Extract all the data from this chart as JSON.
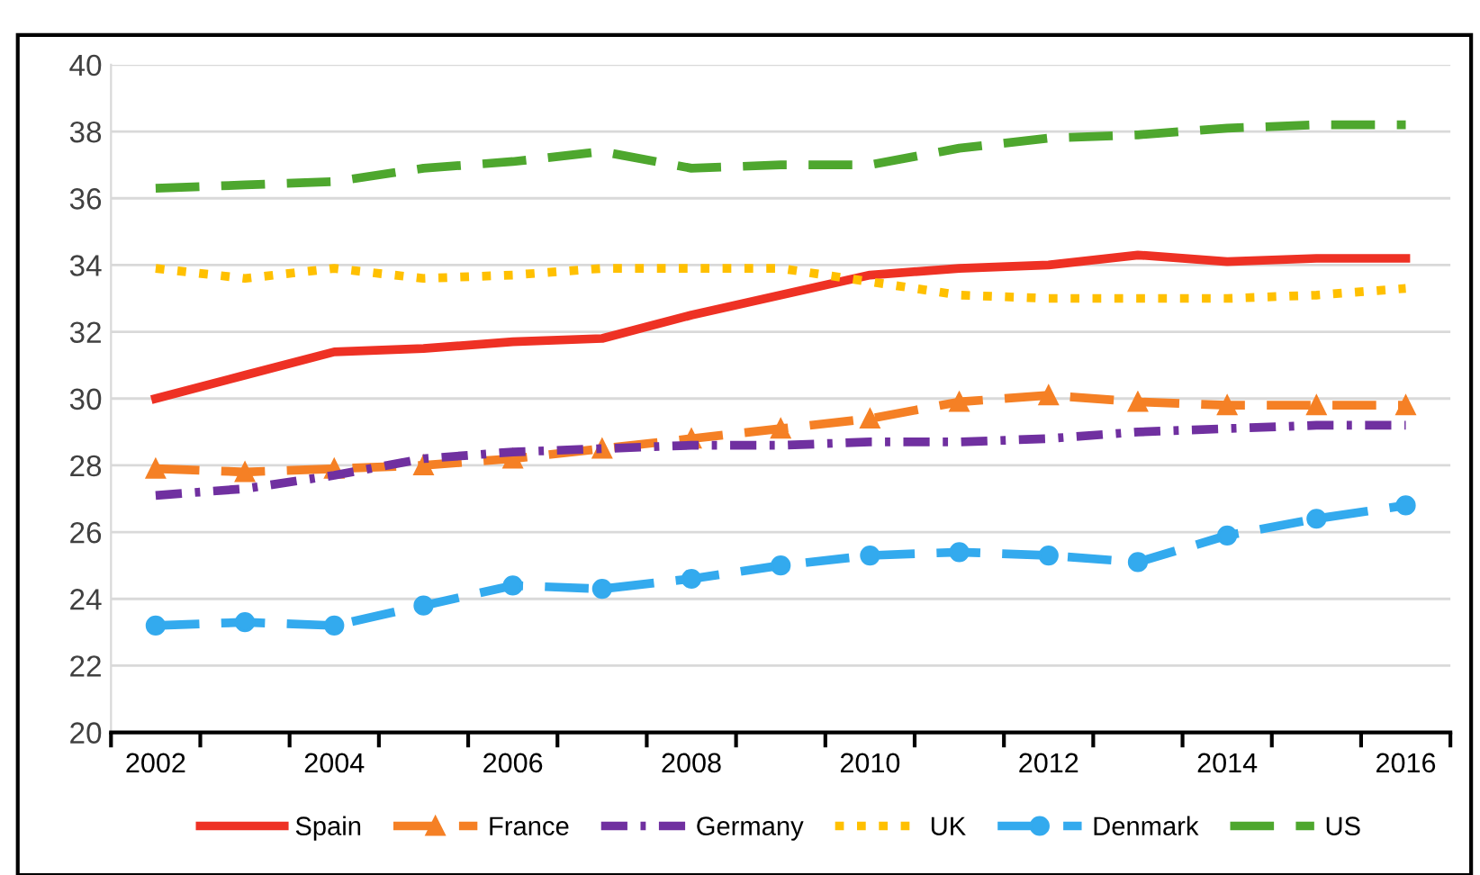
{
  "chart_data": {
    "type": "line",
    "categories": [
      "2002",
      null,
      "2004",
      null,
      "2006",
      null,
      "2008",
      null,
      "2010",
      null,
      "2012",
      null,
      "2014",
      null,
      "2016"
    ],
    "series": [
      {
        "name": "Spain",
        "color": "#ee3124",
        "line_style": "solid",
        "marker": "none",
        "values": [
          30.0,
          30.7,
          31.4,
          31.5,
          31.7,
          31.8,
          32.5,
          33.1,
          33.7,
          33.9,
          34.0,
          34.3,
          34.1,
          34.2,
          34.2
        ]
      },
      {
        "name": "France",
        "color": "#f58025",
        "line_style": "dashed",
        "marker": "triangle",
        "values": [
          27.9,
          27.8,
          27.9,
          28.0,
          28.2,
          28.5,
          28.8,
          29.1,
          29.4,
          29.9,
          30.1,
          29.9,
          29.8,
          29.8,
          29.8
        ]
      },
      {
        "name": "Germany",
        "color": "#7030a0",
        "line_style": "dashdot",
        "marker": "none",
        "values": [
          27.1,
          27.3,
          27.7,
          28.2,
          28.4,
          28.5,
          28.6,
          28.6,
          28.7,
          28.7,
          28.8,
          29.0,
          29.1,
          29.2,
          29.2
        ]
      },
      {
        "name": "UK",
        "color": "#ffc000",
        "line_style": "dotted",
        "marker": "none",
        "values": [
          33.9,
          33.6,
          33.9,
          33.6,
          33.7,
          33.9,
          33.9,
          33.9,
          33.5,
          33.1,
          33.0,
          33.0,
          33.0,
          33.1,
          33.3
        ]
      },
      {
        "name": "Denmark",
        "color": "#33aaee",
        "line_style": "dashed",
        "marker": "circle",
        "values": [
          23.2,
          23.3,
          23.2,
          23.8,
          24.4,
          24.3,
          24.6,
          25.0,
          25.3,
          25.4,
          25.3,
          25.1,
          25.9,
          26.4,
          26.8
        ]
      },
      {
        "name": "US",
        "color": "#4ea72e",
        "line_style": "dashed",
        "marker": "none",
        "values": [
          36.3,
          36.4,
          36.5,
          36.9,
          37.1,
          37.4,
          36.9,
          37.0,
          37.0,
          37.5,
          37.8,
          37.9,
          38.1,
          38.2,
          38.2
        ]
      }
    ],
    "ylim": [
      20,
      40
    ],
    "yticks": [
      20,
      22,
      24,
      26,
      28,
      30,
      32,
      34,
      36,
      38,
      40
    ],
    "grid": "y",
    "legend": "bottom"
  }
}
